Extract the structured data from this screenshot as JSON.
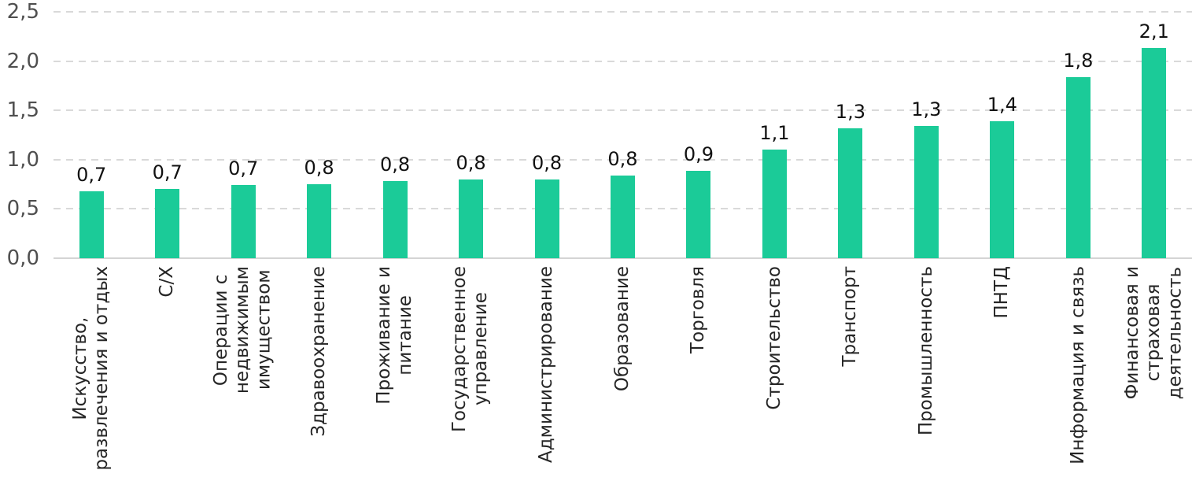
{
  "chart_data": {
    "type": "bar",
    "title": "",
    "xlabel": "",
    "ylabel": "",
    "legend": "none",
    "grid": "horizontal-dashed",
    "ylim": [
      0,
      2.5
    ],
    "yticks": [
      0,
      0.5,
      1.0,
      1.5,
      2.0,
      2.5
    ],
    "ytick_labels": [
      "0,0",
      "0,5",
      "1,0",
      "1,5",
      "2,0",
      "2,5"
    ],
    "categories": [
      "Искусство,\nразвлечения и отдых",
      "С/Х",
      "Операции с\nнедвижимым\nимуществом",
      "Здравоохранение",
      "Проживание и\nпитание",
      "Государственное\nуправление",
      "Администрирование",
      "Образование",
      "Торговля",
      "Строительство",
      "Транспорт",
      "Промышленность",
      "ПНТД",
      "Информация и связь",
      "Финансовая и\nстраховая\nдеятельность"
    ],
    "values": [
      0.68,
      0.7,
      0.74,
      0.75,
      0.78,
      0.8,
      0.8,
      0.84,
      0.89,
      1.1,
      1.32,
      1.34,
      1.39,
      1.84,
      2.13
    ],
    "data_labels": [
      "0,7",
      "0,7",
      "0,7",
      "0,8",
      "0,8",
      "0,8",
      "0,8",
      "0,8",
      "0,9",
      "1,1",
      "1,3",
      "1,3",
      "1,4",
      "1,8",
      "2,1"
    ],
    "colors": {
      "bar": "#1bcb98",
      "value_label": "#111111",
      "tick_label": "#4f4f4f",
      "category_label": "#262626",
      "gridline": "#d9d9d9",
      "baseline": "#d4d4d4",
      "background": "#ffffff"
    }
  }
}
